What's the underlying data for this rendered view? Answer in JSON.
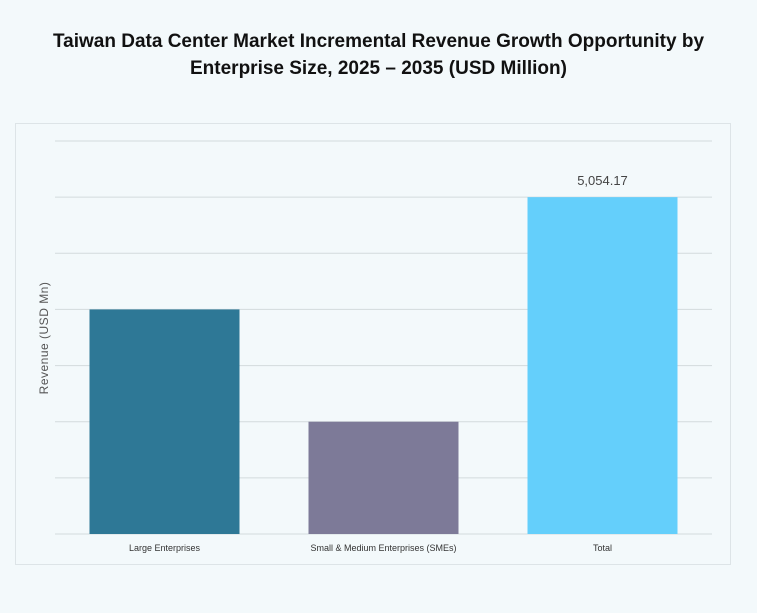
{
  "chart_data": {
    "type": "bar",
    "title_line1": "Taiwan Data Center Market Incremental Revenue Growth Opportunity by",
    "title_line2": "Enterprise Size, 2025 – 2035 (USD Million)",
    "ylabel": "Revenue (USD Mn)",
    "xlabel": "",
    "categories": [
      "Large Enterprises",
      "Small & Medium Enterprises (SMEs)",
      "Total"
    ],
    "values": [
      3369.45,
      1684.72,
      5054.17
    ],
    "data_labels": [
      "",
      "",
      "5,054.17"
    ],
    "colors": [
      "#2e7896",
      "#7d7a98",
      "#64cffb"
    ],
    "ylim": [
      0,
      5896.53
    ],
    "grid": true,
    "ytick_labels_shown": false
  }
}
